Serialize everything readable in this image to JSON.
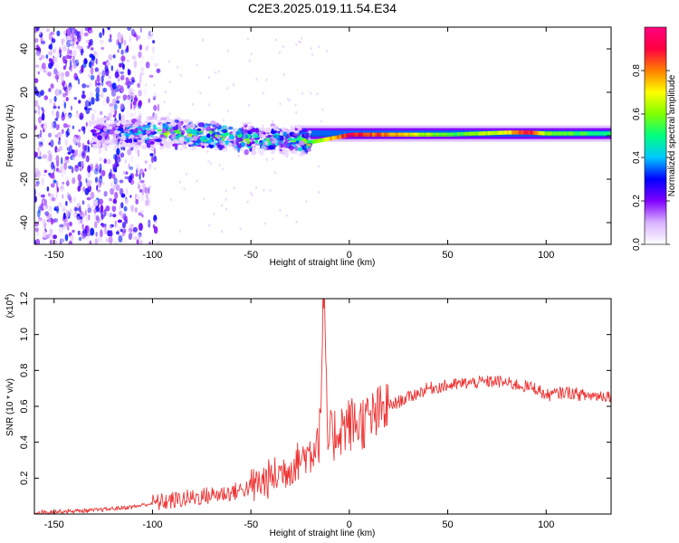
{
  "figure_title": "C2E3.2025.019.11.54.E34",
  "colors": {
    "snr_line": "#ee3333",
    "axes": "#000000",
    "background": "#ffffff"
  },
  "chart_data": [
    {
      "type": "heatmap",
      "title": "C2E3.2025.019.11.54.E34",
      "xlabel": "Height of straight line (km)",
      "ylabel": "Frequency (Hz)",
      "xlim": [
        -160,
        133
      ],
      "ylim": [
        -50,
        50
      ],
      "x_ticks": [
        -150,
        -100,
        -50,
        0,
        50,
        100
      ],
      "y_ticks": [
        -40,
        -20,
        0,
        20,
        40
      ],
      "colorbar": {
        "label": "Normalized spectral amplitude",
        "range": [
          0,
          1
        ],
        "ticks": [
          0.0,
          0.2,
          0.4,
          0.6,
          0.8
        ],
        "tick_labels": [
          "0.0",
          "0.2",
          "0.4",
          "0.6",
          "0.8"
        ],
        "colormap": [
          "#ffffff",
          "#d9b3ff",
          "#8000ff",
          "#0000ff",
          "#00c8ff",
          "#00ff80",
          "#80ff00",
          "#ffff00",
          "#ff8000",
          "#ff0040",
          "#ff0080"
        ]
      },
      "description_series": [
        {
          "name": "scattered noise region",
          "x_range": [
            -160,
            -105
          ],
          "freq_range": [
            -50,
            50
          ],
          "amplitude": 0.15
        },
        {
          "name": "spectral line",
          "x": [
            -130,
            -100,
            -75,
            -50,
            -30,
            -20,
            0,
            20,
            50,
            80,
            90,
            100,
            133
          ],
          "freq": [
            1,
            1.5,
            0.5,
            -1,
            -2,
            -3,
            0.5,
            0.5,
            0.5,
            1.5,
            1.5,
            1,
            1
          ],
          "amplitude": [
            0.25,
            0.45,
            0.5,
            0.5,
            0.4,
            0.55,
            0.95,
            0.8,
            0.55,
            0.7,
            0.95,
            0.6,
            0.5
          ]
        }
      ]
    },
    {
      "type": "line",
      "title": "",
      "xlabel": "Height of straight line (km)",
      "ylabel": "SNR (10 * v/v)",
      "y_multiplier": "(x10",
      "y_multiplier_exp": "4",
      "xlim": [
        -160,
        133
      ],
      "ylim": [
        0,
        1.2
      ],
      "x_ticks": [
        -150,
        -100,
        -50,
        0,
        50,
        100
      ],
      "y_ticks": [
        0.2,
        0.4,
        0.6,
        0.8,
        1.0,
        1.2
      ],
      "y_tick_labels": [
        "0.2",
        "0.4",
        "0.6",
        "0.8",
        "1.0",
        "1.2"
      ],
      "series": [
        {
          "name": "SNR",
          "x": [
            -160,
            -130,
            -110,
            -100,
            -80,
            -60,
            -50,
            -40,
            -30,
            -20,
            -15,
            -13,
            -11,
            -5,
            0,
            10,
            20,
            30,
            40,
            60,
            75,
            85,
            95,
            100,
            110,
            120,
            133
          ],
          "y": [
            0.01,
            0.02,
            0.04,
            0.06,
            0.09,
            0.12,
            0.15,
            0.2,
            0.26,
            0.35,
            0.45,
            1.2,
            0.4,
            0.48,
            0.5,
            0.52,
            0.6,
            0.65,
            0.7,
            0.73,
            0.74,
            0.72,
            0.7,
            0.66,
            0.68,
            0.66,
            0.66
          ]
        }
      ]
    }
  ]
}
